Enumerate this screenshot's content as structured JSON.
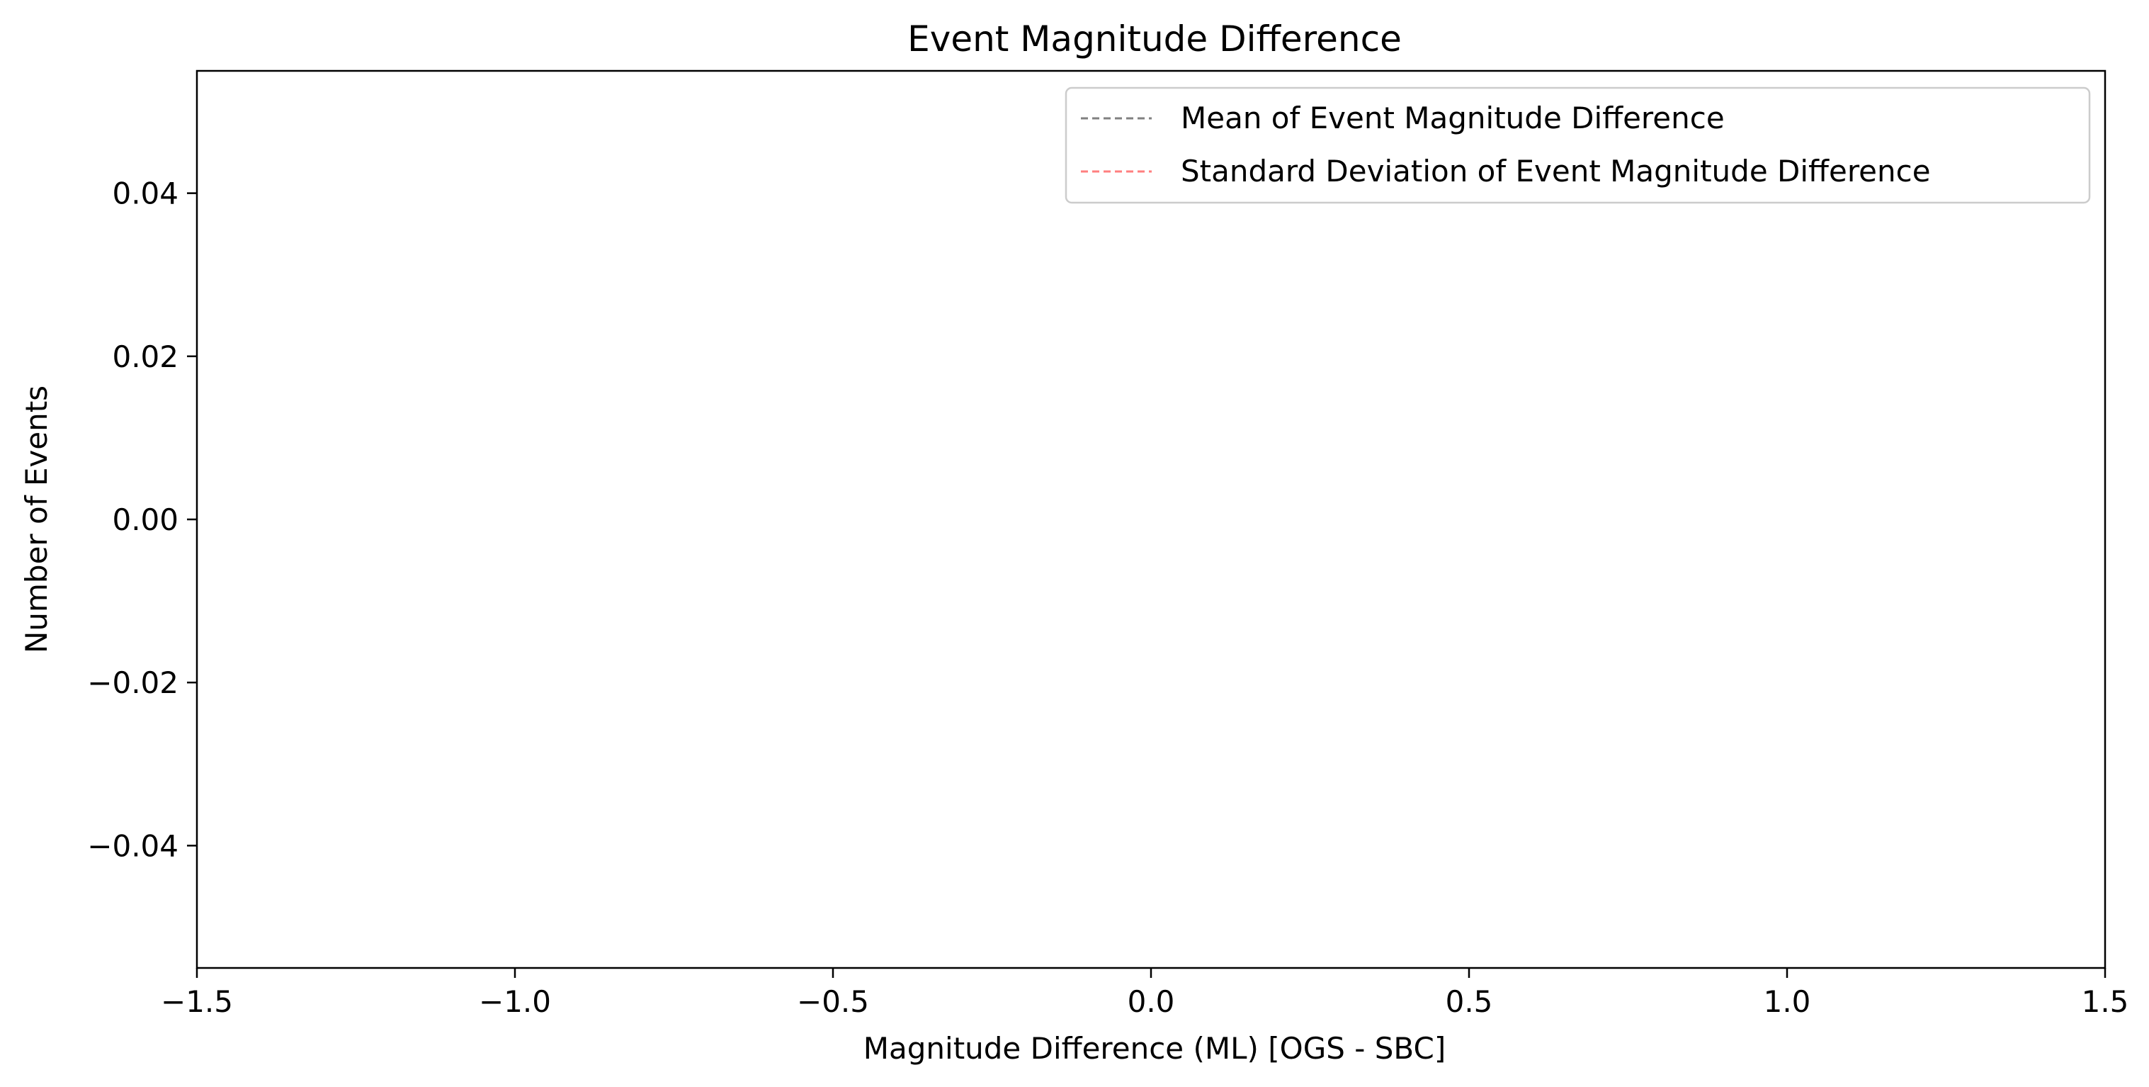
{
  "chart_data": {
    "type": "histogram",
    "title": "Event Magnitude Difference",
    "xlabel": "Magnitude Difference (ML) [OGS - SBC]",
    "ylabel": "Number of Events",
    "xlim": [
      -1.5,
      1.5
    ],
    "ylim": [
      -0.055,
      0.055
    ],
    "x_ticks": [
      -1.5,
      -1.0,
      -0.5,
      0.0,
      0.5,
      1.0,
      1.5
    ],
    "x_tick_labels": [
      "−1.5",
      "−1.0",
      "−0.5",
      "0.0",
      "0.5",
      "1.0",
      "1.5"
    ],
    "y_ticks": [
      0.04,
      0.02,
      0.0,
      -0.02,
      -0.04
    ],
    "y_tick_labels": [
      "0.04",
      "0.02",
      "0.00",
      "−0.02",
      "−0.04"
    ],
    "grid": false,
    "legend_position": "top-right",
    "series": [
      {
        "name": "Mean of Event Magnitude Difference",
        "style": "dashed",
        "color": "#808080",
        "values": []
      },
      {
        "name": "Standard Deviation of Event Magnitude Difference",
        "style": "dashed",
        "color": "#ff7f7f",
        "values": []
      }
    ],
    "bins": []
  }
}
